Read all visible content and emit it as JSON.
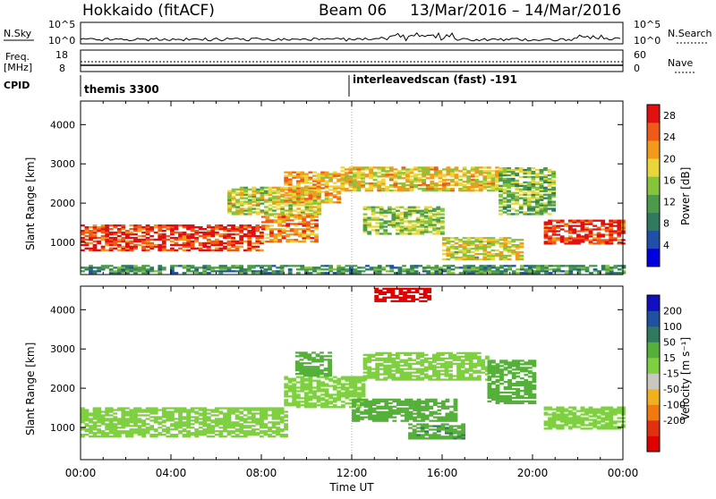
{
  "header": {
    "station": "Hokkaido (fitACF)",
    "beam": "Beam 06",
    "date_range": "13/Mar/2016 – 14/Mar/2016"
  },
  "top_panels": {
    "nsky_label": "N.Sky",
    "nsearch_label": "N.Search",
    "nsky_ticks": [
      "10^5",
      "10^0"
    ],
    "nsearch_ticks": [
      "10^5",
      "10^0"
    ],
    "freq_label_1": "Freq.",
    "freq_label_2": "[MHz]",
    "freq_ticks": [
      "18",
      "8"
    ],
    "nave_label": "Nave",
    "nave_ticks": [
      "60",
      "0"
    ],
    "cpid_label": "CPID",
    "cpid_segments": [
      {
        "text": "themis 3300",
        "start_hour": 0
      },
      {
        "text": "interleavedscan (fast) -191",
        "start_hour": 12
      }
    ]
  },
  "chart_data": [
    {
      "type": "heatmap",
      "panel": "power",
      "xlabel": "",
      "ylabel": "Slant Range [km]",
      "xlim": [
        0,
        24
      ],
      "ylim": [
        180,
        4600
      ],
      "y_ticks": [
        1000,
        2000,
        3000,
        4000
      ],
      "colorbar": {
        "label": "Power [dB]",
        "ticks": [
          4,
          8,
          12,
          16,
          20,
          24,
          28
        ],
        "range": [
          0,
          30
        ],
        "colors": [
          "#0000e0",
          "#1f4fa8",
          "#2f7a5f",
          "#4d9a4a",
          "#86c43a",
          "#e8d63a",
          "#f39a1a",
          "#f05a18",
          "#e01010"
        ]
      },
      "regions": [
        {
          "t0": 0.0,
          "t1": 8.0,
          "r0": 780,
          "r1": 1420,
          "value": 27
        },
        {
          "t0": 8.0,
          "t1": 10.5,
          "r0": 1000,
          "r1": 1700,
          "value": 23
        },
        {
          "t0": 6.5,
          "t1": 10.5,
          "r0": 1700,
          "r1": 2400,
          "value": 17
        },
        {
          "t0": 9.0,
          "t1": 11.5,
          "r0": 2000,
          "r1": 2800,
          "value": 21
        },
        {
          "t0": 11.5,
          "t1": 18.5,
          "r0": 2300,
          "r1": 2900,
          "value": 19
        },
        {
          "t0": 12.5,
          "t1": 16.0,
          "r0": 1200,
          "r1": 1900,
          "value": 15
        },
        {
          "t0": 16.0,
          "t1": 19.5,
          "r0": 550,
          "r1": 1100,
          "value": 18
        },
        {
          "t0": 18.5,
          "t1": 21.0,
          "r0": 1700,
          "r1": 2900,
          "value": 14
        },
        {
          "t0": 20.5,
          "t1": 24.0,
          "r0": 950,
          "r1": 1550,
          "value": 27
        },
        {
          "t0": 0.0,
          "t1": 24.0,
          "r0": 200,
          "r1": 400,
          "value": 10
        }
      ]
    },
    {
      "type": "heatmap",
      "panel": "velocity",
      "xlabel": "Time UT",
      "ylabel": "Slant Range [km]",
      "xlim": [
        0,
        24
      ],
      "ylim": [
        180,
        4600
      ],
      "x_ticks": [
        "00:00",
        "04:00",
        "08:00",
        "12:00",
        "16:00",
        "20:00",
        "00:00"
      ],
      "y_ticks": [
        1000,
        2000,
        3000,
        4000
      ],
      "colorbar": {
        "label": "Velocity [m s⁻¹]",
        "ticks": [
          200,
          100,
          50,
          15,
          -15,
          -50,
          -100,
          -200
        ],
        "colors": [
          "#1010c0",
          "#2050a0",
          "#2f7a5f",
          "#55b03a",
          "#7fd040",
          "#c8c8c0",
          "#f0b020",
          "#f07a10",
          "#e03010",
          "#e00000"
        ]
      },
      "regions": [
        {
          "t0": 0.0,
          "t1": 9.0,
          "r0": 750,
          "r1": 1500,
          "value": 0
        },
        {
          "t0": 9.0,
          "t1": 12.5,
          "r0": 1500,
          "r1": 2300,
          "value": 0
        },
        {
          "t0": 12.5,
          "t1": 18.0,
          "r0": 2200,
          "r1": 2900,
          "value": 0
        },
        {
          "t0": 20.5,
          "t1": 24.0,
          "r0": 950,
          "r1": 1500,
          "value": 0
        },
        {
          "t0": 12.0,
          "t1": 16.5,
          "r0": 1150,
          "r1": 1700,
          "value": 30
        },
        {
          "t0": 9.5,
          "t1": 11.0,
          "r0": 2300,
          "r1": 2900,
          "value": 30
        },
        {
          "t0": 18.0,
          "t1": 20.0,
          "r0": 1600,
          "r1": 2700,
          "value": 30
        },
        {
          "t0": 14.5,
          "t1": 17.0,
          "r0": 700,
          "r1": 1100,
          "value": 40
        },
        {
          "t0": 13.0,
          "t1": 15.5,
          "r0": 4200,
          "r1": 4550,
          "value": -250
        }
      ]
    }
  ]
}
